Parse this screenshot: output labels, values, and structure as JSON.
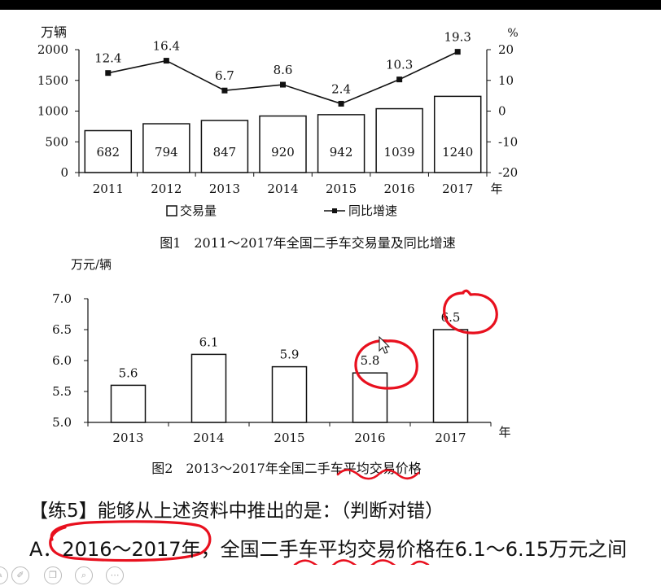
{
  "chart_data": [
    {
      "type": "bar+line",
      "title": "图1　2011～2017年全国二手车交易量及同比增速",
      "y_unit_left": "万辆",
      "y_unit_right": "%",
      "x_unit": "年",
      "categories": [
        "2011",
        "2012",
        "2013",
        "2014",
        "2015",
        "2016",
        "2017"
      ],
      "series": [
        {
          "name": "交易量",
          "type": "bar",
          "values": [
            682,
            794,
            847,
            920,
            942,
            1039,
            1240
          ]
        },
        {
          "name": "同比增速",
          "type": "line",
          "values": [
            12.4,
            16.4,
            6.7,
            8.6,
            2.4,
            10.3,
            19.3
          ]
        }
      ],
      "left_ticks": [
        "0",
        "500",
        "1000",
        "1500",
        "2000"
      ],
      "right_ticks": [
        "-20",
        "-10",
        "0",
        "10",
        "20"
      ],
      "ylim_left": [
        0,
        2000
      ],
      "ylim_right": [
        -20,
        20
      ],
      "bar_labels": [
        "682",
        "794",
        "847",
        "920",
        "942",
        "1039",
        "1240"
      ],
      "line_labels": [
        "12.4",
        "16.4",
        "6.7",
        "8.6",
        "2.4",
        "10.3",
        "19.3"
      ],
      "legend": "bottom"
    },
    {
      "type": "bar",
      "title": "图2　2013～2017年全国二手车平均交易价格",
      "y_unit": "万元/辆",
      "x_unit": "年",
      "categories": [
        "2013",
        "2014",
        "2015",
        "2016",
        "2017"
      ],
      "values": [
        5.6,
        6.1,
        5.9,
        5.8,
        6.5
      ],
      "value_labels": [
        "5.6",
        "6.1",
        "5.9",
        "5.8",
        "6.5"
      ],
      "y_ticks": [
        "5.0",
        "5.5",
        "6.0",
        "6.5",
        "7.0"
      ],
      "ylim": [
        5.0,
        7.0
      ]
    }
  ],
  "question": {
    "title": "【练5】能够从上述资料中推出的是：（判断对错）",
    "option_a": "A．2016～2017年，全国二手车平均交易价格在6.1～6.15万元之间"
  },
  "annotation_color": "#e8101e",
  "toolbar_icons": [
    "pen-icon",
    "edit-icon",
    "copy-icon",
    "search-icon",
    "more-icon"
  ]
}
